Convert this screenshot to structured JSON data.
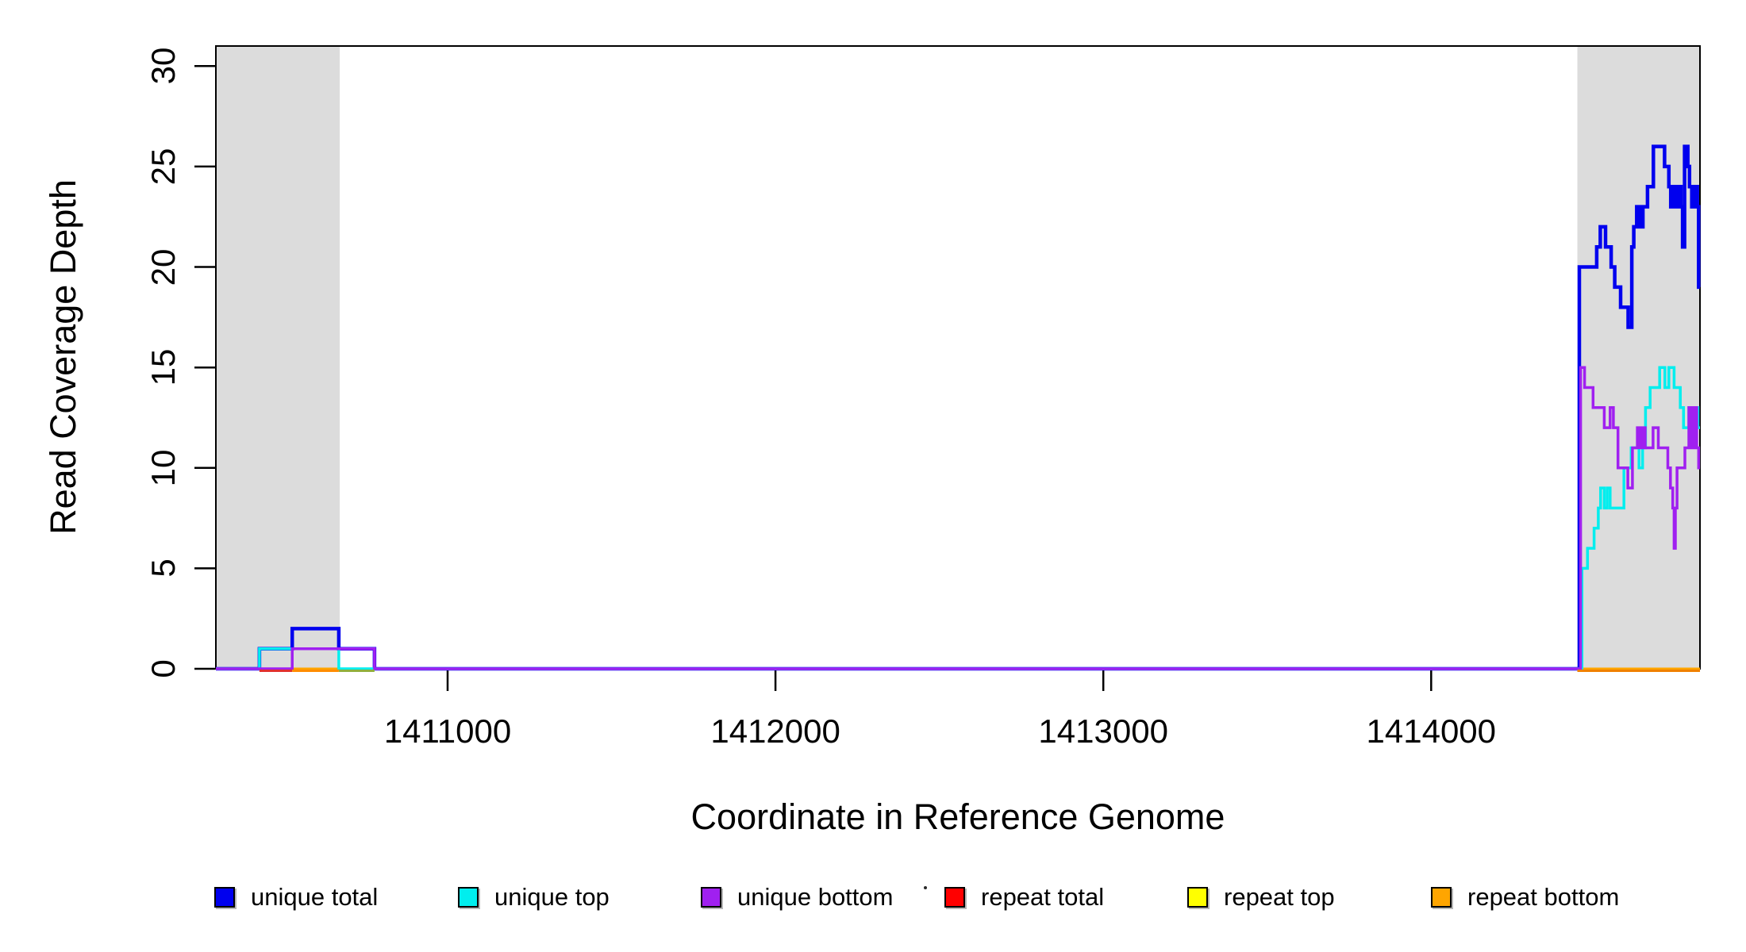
{
  "chart_data": {
    "type": "line",
    "subtype": "step-coverage",
    "title": "",
    "xlabel": "Coordinate in Reference Genome",
    "ylabel": "Read Coverage Depth",
    "xlim": [
      1410293,
      1414820
    ],
    "ylim": [
      0,
      31
    ],
    "x_ticks": [
      1411000,
      1412000,
      1413000,
      1414000
    ],
    "y_ticks": [
      0,
      5,
      10,
      15,
      20,
      25,
      30
    ],
    "grid": false,
    "legend_position": "bottom",
    "plot_border_color": "#000000",
    "shaded_regions": [
      {
        "name": "left-gray-band",
        "from": 1410293,
        "to": 1410671,
        "color": "#DCDCDC"
      },
      {
        "name": "right-gray-band",
        "from": 1414446,
        "to": 1414820,
        "color": "#DCDCDC"
      }
    ],
    "series": [
      {
        "name": "repeat-total",
        "label": "repeat total",
        "color": "#FF0000",
        "stroke_width": 3,
        "steps": [
          [
            1410293,
            0
          ],
          [
            1414820,
            0
          ]
        ]
      },
      {
        "name": "repeat-top",
        "label": "repeat top",
        "color": "#FFFF00",
        "stroke_width": 3,
        "steps": [
          [
            1410293,
            0
          ],
          [
            1414820,
            0
          ]
        ]
      },
      {
        "name": "repeat-bottom",
        "label": "repeat bottom",
        "color": "#FFA500",
        "stroke_width": 3,
        "steps": [
          [
            1410293,
            0
          ],
          [
            1414820,
            0
          ]
        ]
      },
      {
        "name": "unique-total",
        "label": "unique total",
        "color": "#0000EE",
        "stroke_width": 4.5,
        "steps": [
          [
            1410293,
            0
          ],
          [
            1410426,
            1
          ],
          [
            1410526,
            2
          ],
          [
            1410668,
            1
          ],
          [
            1410777,
            0
          ],
          [
            1414452,
            20
          ],
          [
            1414505,
            21
          ],
          [
            1414516,
            22
          ],
          [
            1414532,
            21
          ],
          [
            1414549,
            20
          ],
          [
            1414560,
            19
          ],
          [
            1414578,
            18
          ],
          [
            1414601,
            17
          ],
          [
            1414612,
            21
          ],
          [
            1414618,
            22
          ],
          [
            1414627,
            23
          ],
          [
            1414636,
            22
          ],
          [
            1414646,
            23
          ],
          [
            1414660,
            24
          ],
          [
            1414678,
            26
          ],
          [
            1414712,
            25
          ],
          [
            1414725,
            24
          ],
          [
            1414731,
            23
          ],
          [
            1414738,
            24
          ],
          [
            1414746,
            23
          ],
          [
            1414754,
            24
          ],
          [
            1414762,
            23
          ],
          [
            1414767,
            21
          ],
          [
            1414773,
            26
          ],
          [
            1414783,
            25
          ],
          [
            1414788,
            24
          ],
          [
            1414795,
            23
          ],
          [
            1414803,
            24
          ],
          [
            1414812,
            23
          ],
          [
            1414816,
            19
          ]
        ]
      },
      {
        "name": "unique-top",
        "label": "unique top",
        "color": "#00EEEE",
        "stroke_width": 3.5,
        "steps": [
          [
            1410293,
            0
          ],
          [
            1410426,
            1
          ],
          [
            1410668,
            0
          ],
          [
            1414460,
            5
          ],
          [
            1414477,
            6
          ],
          [
            1414497,
            7
          ],
          [
            1414510,
            8
          ],
          [
            1414517,
            9
          ],
          [
            1414528,
            8
          ],
          [
            1414537,
            9
          ],
          [
            1414546,
            8
          ],
          [
            1414588,
            10
          ],
          [
            1414610,
            11
          ],
          [
            1414634,
            10
          ],
          [
            1414645,
            11
          ],
          [
            1414654,
            13
          ],
          [
            1414668,
            14
          ],
          [
            1414697,
            15
          ],
          [
            1414713,
            14
          ],
          [
            1414725,
            15
          ],
          [
            1414741,
            14
          ],
          [
            1414760,
            13
          ],
          [
            1414770,
            12
          ],
          [
            1414786,
            13
          ],
          [
            1414798,
            12
          ],
          [
            1414803,
            13
          ],
          [
            1414814,
            12
          ]
        ]
      },
      {
        "name": "unique-bottom",
        "label": "unique bottom",
        "color": "#A020F0",
        "stroke_width": 3.5,
        "steps": [
          [
            1410293,
            0
          ],
          [
            1410526,
            1
          ],
          [
            1410777,
            0
          ],
          [
            1414456,
            15
          ],
          [
            1414468,
            14
          ],
          [
            1414494,
            13
          ],
          [
            1414528,
            12
          ],
          [
            1414546,
            13
          ],
          [
            1414556,
            12
          ],
          [
            1414570,
            10
          ],
          [
            1414600,
            9
          ],
          [
            1414614,
            11
          ],
          [
            1414629,
            12
          ],
          [
            1414637,
            11
          ],
          [
            1414645,
            12
          ],
          [
            1414653,
            11
          ],
          [
            1414677,
            12
          ],
          [
            1414693,
            11
          ],
          [
            1414722,
            10
          ],
          [
            1414730,
            9
          ],
          [
            1414737,
            8
          ],
          [
            1414741,
            6
          ],
          [
            1414745,
            8
          ],
          [
            1414750,
            10
          ],
          [
            1414774,
            11
          ],
          [
            1414786,
            13
          ],
          [
            1414794,
            11
          ],
          [
            1414802,
            13
          ],
          [
            1414810,
            11
          ],
          [
            1414816,
            10
          ]
        ]
      }
    ],
    "baseline_segments": [
      {
        "name": "baseline-red",
        "from": 1410426,
        "to": 1410526,
        "color": "#E03030"
      },
      {
        "name": "baseline-orange",
        "from": 1410526,
        "to": 1410668,
        "color": "#FF8C00"
      },
      {
        "name": "baseline-olive",
        "from": 1410668,
        "to": 1410777,
        "color": "#8FAF3E"
      },
      {
        "name": "baseline-orange-right",
        "from": 1414446,
        "to": 1414820,
        "color": "#F08000"
      }
    ]
  },
  "legend": {
    "items": [
      {
        "label": "unique total",
        "color": "#0000EE"
      },
      {
        "label": "unique top",
        "color": "#00EEEE"
      },
      {
        "label": "unique bottom",
        "color": "#A020F0"
      },
      {
        "label": "repeat total",
        "color": "#FF0000"
      },
      {
        "label": "repeat top",
        "color": "#FFFF00"
      },
      {
        "label": "repeat bottom",
        "color": "#FFA500"
      }
    ]
  }
}
